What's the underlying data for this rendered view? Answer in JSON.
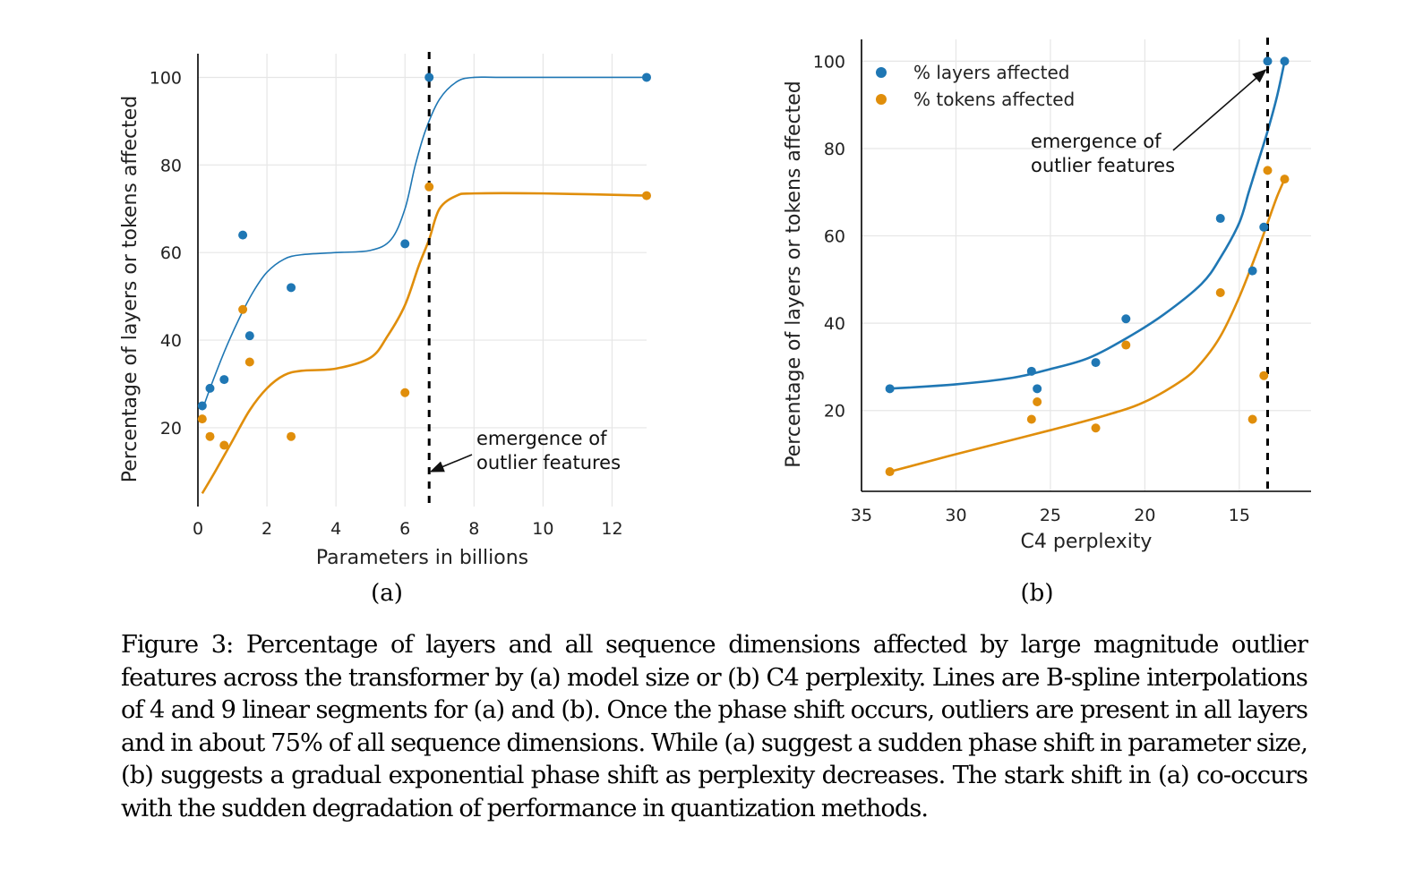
{
  "colors": {
    "layers": "#1f77b4",
    "tokens": "#e08e0b",
    "grid": "#e6e6e6",
    "marker_line": "#000000"
  },
  "chart_data": [
    {
      "id": "a",
      "type": "scatter",
      "sublabel": "(a)",
      "xlabel": "Parameters in billions",
      "ylabel": "Percentage of layers or tokens affected",
      "xlim": [
        0,
        13
      ],
      "ylim": [
        2,
        105
      ],
      "xticks": [
        0,
        2,
        4,
        6,
        8,
        10,
        12
      ],
      "yticks": [
        20,
        40,
        60,
        80,
        100
      ],
      "grid": true,
      "vline_x": 6.7,
      "annotation": {
        "lines": [
          "emergence of",
          "outlier features"
        ],
        "arrow_to_x": 6.7,
        "arrow_to_y": 10
      },
      "series": [
        {
          "name": "% layers affected",
          "color_key": "layers",
          "points": [
            [
              0.125,
              25
            ],
            [
              0.35,
              29
            ],
            [
              0.76,
              31
            ],
            [
              1.3,
              64
            ],
            [
              1.5,
              41
            ],
            [
              2.7,
              52
            ],
            [
              6.0,
              62
            ],
            [
              6.7,
              100
            ],
            [
              13,
              100
            ]
          ],
          "curve": [
            [
              0.125,
              24
            ],
            [
              0.4,
              30
            ],
            [
              0.8,
              38
            ],
            [
              1.2,
              45
            ],
            [
              1.6,
              51
            ],
            [
              2.0,
              55.5
            ],
            [
              2.5,
              58.5
            ],
            [
              3.0,
              59.5
            ],
            [
              4.0,
              60
            ],
            [
              5.0,
              60.5
            ],
            [
              5.6,
              63
            ],
            [
              6.0,
              70
            ],
            [
              6.3,
              80
            ],
            [
              6.6,
              88
            ],
            [
              7.0,
              95
            ],
            [
              7.5,
              99
            ],
            [
              8.0,
              100
            ],
            [
              9,
              100
            ],
            [
              13,
              100
            ]
          ]
        },
        {
          "name": "% tokens affected",
          "color_key": "tokens",
          "points": [
            [
              0.125,
              22
            ],
            [
              0.35,
              18
            ],
            [
              0.76,
              16
            ],
            [
              1.3,
              47
            ],
            [
              1.5,
              35
            ],
            [
              2.7,
              18
            ],
            [
              6.0,
              28
            ],
            [
              6.7,
              75
            ],
            [
              13,
              73
            ]
          ],
          "curve": [
            [
              0.125,
              5
            ],
            [
              0.5,
              10
            ],
            [
              1.0,
              17
            ],
            [
              1.5,
              24
            ],
            [
              2.0,
              29
            ],
            [
              2.5,
              32
            ],
            [
              3.0,
              33
            ],
            [
              4.0,
              33.5
            ],
            [
              5.0,
              36
            ],
            [
              5.5,
              41
            ],
            [
              6.0,
              48
            ],
            [
              6.4,
              57
            ],
            [
              6.7,
              63
            ],
            [
              7.0,
              70
            ],
            [
              7.5,
              73
            ],
            [
              8.0,
              73.5
            ],
            [
              10,
              73.5
            ],
            [
              13,
              73
            ]
          ]
        }
      ]
    },
    {
      "id": "b",
      "type": "scatter",
      "sublabel": "(b)",
      "xlabel": "C4 perplexity",
      "ylabel": "Percentage of layers or tokens affected",
      "xlim": [
        35,
        11.2
      ],
      "ylim": [
        1.5,
        105
      ],
      "xticks": [
        35,
        30,
        25,
        20,
        15
      ],
      "yticks": [
        20,
        40,
        60,
        80,
        100
      ],
      "grid": true,
      "vline_x": 13.5,
      "legend_position": "top-left",
      "annotation": {
        "lines": [
          "emergence",
          "of outlier features"
        ],
        "arrow_to_x": 13.7,
        "arrow_to_y": 98
      },
      "series": [
        {
          "name": "% layers affected",
          "color_key": "layers",
          "points": [
            [
              33.5,
              25
            ],
            [
              26,
              29
            ],
            [
              25.7,
              25
            ],
            [
              22.6,
              31
            ],
            [
              21,
              41
            ],
            [
              16,
              64
            ],
            [
              14.3,
              52
            ],
            [
              13.7,
              62
            ],
            [
              13.5,
              100
            ],
            [
              12.6,
              100
            ]
          ],
          "curve": [
            [
              33.5,
              25
            ],
            [
              30,
              26
            ],
            [
              27,
              27.5
            ],
            [
              25,
              29.5
            ],
            [
              23,
              32
            ],
            [
              21,
              36.5
            ],
            [
              19,
              42
            ],
            [
              17,
              49
            ],
            [
              16,
              55
            ],
            [
              15,
              63
            ],
            [
              14.5,
              70
            ],
            [
              14,
              77
            ],
            [
              13.5,
              84
            ],
            [
              13,
              92
            ],
            [
              12.6,
              100
            ]
          ]
        },
        {
          "name": "% tokens affected",
          "color_key": "tokens",
          "points": [
            [
              33.5,
              6
            ],
            [
              26,
              18
            ],
            [
              25.7,
              22
            ],
            [
              22.6,
              16
            ],
            [
              21,
              35
            ],
            [
              16,
              47
            ],
            [
              14.3,
              18
            ],
            [
              13.7,
              28
            ],
            [
              13.5,
              75
            ],
            [
              12.6,
              73
            ]
          ],
          "curve": [
            [
              33.5,
              6
            ],
            [
              30,
              10
            ],
            [
              25,
              15.5
            ],
            [
              22,
              19
            ],
            [
              20,
              22
            ],
            [
              18,
              27
            ],
            [
              17,
              31
            ],
            [
              16,
              37
            ],
            [
              15,
              46
            ],
            [
              14,
              57
            ],
            [
              13.5,
              63
            ],
            [
              13,
              69
            ],
            [
              12.6,
              73
            ]
          ]
        }
      ]
    }
  ],
  "caption": "Figure 3: Percentage of layers and all sequence dimensions affected by large magnitude outlier features across the transformer by (a) model size or (b) C4 perplexity. Lines are B-spline interpolations of 4 and 9 linear segments for (a) and (b). Once the phase shift occurs, outliers are present in all layers and in about 75% of all sequence dimensions. While (a) suggest a sudden phase shift in parameter size, (b) suggests a gradual exponential phase shift as perplexity decreases. The stark shift in (a) co-occurs with the sudden degradation of performance in quantization methods."
}
